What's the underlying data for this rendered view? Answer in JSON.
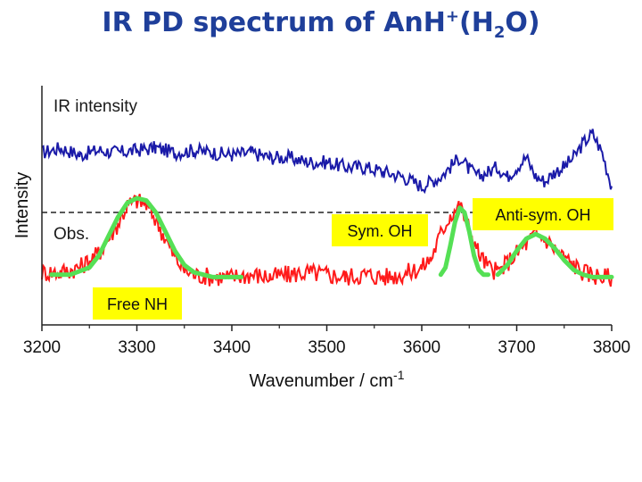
{
  "title": {
    "prefix": "IR PD spectrum of An",
    "h": "H",
    "charge": "+",
    "open": "(H",
    "sub": "2",
    "close": "O)",
    "color": "#1f3f9a"
  },
  "chart_data": {
    "type": "line",
    "xlabel": "Wavenumber / cm",
    "xlabel_superscript": "-1",
    "ylabel": "Intensity",
    "xlim": [
      3200,
      3800
    ],
    "x_ticks": [
      3200,
      3300,
      3400,
      3500,
      3600,
      3700,
      3800
    ],
    "y_ticks": "none",
    "series": [
      {
        "name": "IR intensity",
        "label": "IR intensity",
        "color": "#1a1aa8",
        "x": [
          3200,
          3220,
          3240,
          3260,
          3280,
          3300,
          3320,
          3340,
          3360,
          3380,
          3400,
          3420,
          3440,
          3460,
          3480,
          3500,
          3520,
          3540,
          3560,
          3580,
          3600,
          3610,
          3620,
          3630,
          3640,
          3650,
          3660,
          3670,
          3680,
          3690,
          3700,
          3710,
          3720,
          3730,
          3740,
          3750,
          3760,
          3770,
          3780,
          3790,
          3800
        ],
        "values": [
          0.72,
          0.74,
          0.71,
          0.73,
          0.72,
          0.73,
          0.74,
          0.72,
          0.73,
          0.72,
          0.71,
          0.72,
          0.7,
          0.7,
          0.68,
          0.68,
          0.66,
          0.66,
          0.64,
          0.62,
          0.58,
          0.6,
          0.62,
          0.66,
          0.7,
          0.65,
          0.62,
          0.64,
          0.66,
          0.62,
          0.66,
          0.7,
          0.62,
          0.6,
          0.64,
          0.66,
          0.7,
          0.76,
          0.8,
          0.72,
          0.58
        ]
      },
      {
        "name": "Obs.",
        "label": "Obs.",
        "color": "#ff1a1a",
        "x": [
          3200,
          3220,
          3240,
          3260,
          3270,
          3280,
          3290,
          3300,
          3310,
          3320,
          3330,
          3340,
          3350,
          3360,
          3380,
          3400,
          3420,
          3440,
          3460,
          3480,
          3500,
          3520,
          3540,
          3560,
          3580,
          3600,
          3610,
          3620,
          3630,
          3640,
          3650,
          3660,
          3670,
          3680,
          3690,
          3700,
          3710,
          3720,
          3730,
          3740,
          3750,
          3760,
          3770,
          3780,
          3790,
          3800
        ],
        "values": [
          0.22,
          0.22,
          0.24,
          0.3,
          0.36,
          0.42,
          0.5,
          0.52,
          0.5,
          0.44,
          0.36,
          0.28,
          0.23,
          0.21,
          0.2,
          0.2,
          0.21,
          0.2,
          0.21,
          0.22,
          0.21,
          0.2,
          0.21,
          0.2,
          0.21,
          0.24,
          0.28,
          0.38,
          0.46,
          0.5,
          0.4,
          0.3,
          0.24,
          0.22,
          0.26,
          0.3,
          0.34,
          0.38,
          0.36,
          0.32,
          0.28,
          0.25,
          0.22,
          0.21,
          0.2,
          0.2
        ]
      }
    ],
    "fits": [
      {
        "name": "Free NH fit",
        "color": "#55e055",
        "x": [
          3210,
          3230,
          3250,
          3260,
          3270,
          3280,
          3290,
          3300,
          3310,
          3320,
          3330,
          3340,
          3350,
          3360,
          3370,
          3380,
          3400,
          3410
        ],
        "values": [
          0.21,
          0.21,
          0.24,
          0.29,
          0.37,
          0.45,
          0.51,
          0.53,
          0.52,
          0.47,
          0.39,
          0.31,
          0.25,
          0.22,
          0.21,
          0.2,
          0.2,
          0.2
        ]
      },
      {
        "name": "Sym. OH fit",
        "color": "#55e055",
        "x": [
          3620,
          3625,
          3630,
          3635,
          3640,
          3645,
          3650,
          3655,
          3660,
          3665,
          3670
        ],
        "values": [
          0.21,
          0.24,
          0.33,
          0.43,
          0.49,
          0.47,
          0.39,
          0.29,
          0.23,
          0.21,
          0.21
        ]
      },
      {
        "name": "Anti-sym. OH fit",
        "color": "#55e055",
        "x": [
          3680,
          3690,
          3700,
          3710,
          3720,
          3730,
          3740,
          3750,
          3760,
          3770,
          3780,
          3790,
          3800
        ],
        "values": [
          0.21,
          0.25,
          0.31,
          0.36,
          0.38,
          0.36,
          0.32,
          0.27,
          0.23,
          0.21,
          0.2,
          0.2,
          0.2
        ]
      }
    ],
    "baseline": {
      "y": 0.47,
      "style": "dashed"
    },
    "annotations": [
      {
        "text": "IR intensity",
        "boxed": false,
        "color": "#1a1a1a"
      },
      {
        "text": "Obs.",
        "boxed": false,
        "color": "#1a1a1a"
      },
      {
        "text": "Free NH",
        "boxed": true,
        "fill": "#ffff00"
      },
      {
        "text": "Sym. OH",
        "boxed": true,
        "fill": "#ffff00"
      },
      {
        "text": "Anti-sym. OH",
        "boxed": true,
        "fill": "#ffff00"
      }
    ]
  }
}
